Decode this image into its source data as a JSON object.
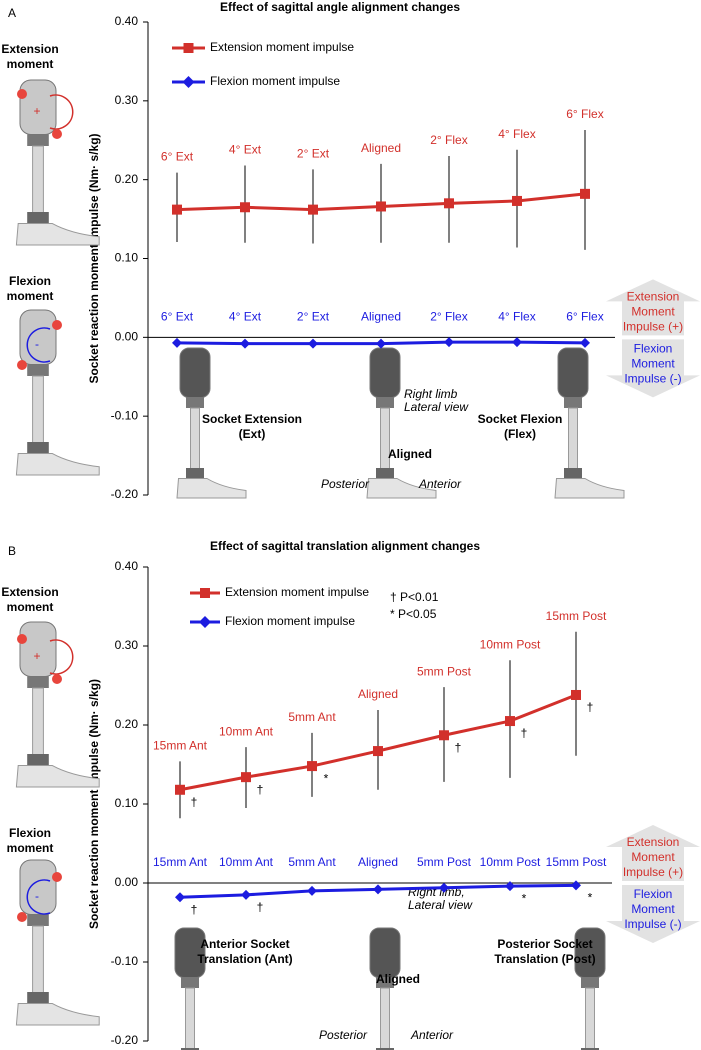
{
  "chart_data": [
    {
      "type": "line",
      "panel": "A",
      "title": "Effect of sagittal angle alignment changes",
      "y_label": "Socket reaction moment impulse (Nm· s/kg)",
      "categories": [
        "6° Ext",
        "4° Ext",
        "2° Ext",
        "Aligned",
        "2° Flex",
        "4° Flex",
        "6° Flex"
      ],
      "series": [
        {
          "name": "Extension moment impulse",
          "color": "#d2302b",
          "marker": "square",
          "values": [
            0.162,
            0.165,
            0.162,
            0.166,
            0.17,
            0.173,
            0.182
          ],
          "ci_low": [
            0.121,
            0.12,
            0.119,
            0.12,
            0.12,
            0.114,
            0.111
          ],
          "ci_high": [
            0.209,
            0.218,
            0.213,
            0.22,
            0.23,
            0.238,
            0.263
          ]
        },
        {
          "name": "Flexion moment impulse",
          "color": "#1c1ce0",
          "marker": "diamond",
          "values": [
            -0.007,
            -0.008,
            -0.008,
            -0.008,
            -0.006,
            -0.006,
            -0.007
          ]
        }
      ],
      "ylim": [
        -0.2,
        0.4
      ],
      "yticks": [
        {
          "value": 0.4,
          "label": "0.40"
        },
        {
          "value": 0.3,
          "label": "0.30"
        },
        {
          "value": 0.2,
          "label": "0.20"
        },
        {
          "value": 0.1,
          "label": "0.10"
        },
        {
          "value": 0,
          "label": "0.00"
        },
        {
          "value": -0.1,
          "label": "-0.10"
        },
        {
          "value": -0.2,
          "label": "-0.20"
        }
      ],
      "side_labels": [
        [
          "Extension",
          "moment"
        ],
        [
          "Flexion",
          "moment"
        ]
      ],
      "moment_signs": [
        "+",
        "-"
      ],
      "arrow_labels": [
        [
          "Extension",
          "Moment",
          "Impulse (+)"
        ],
        [
          "Flexion",
          "Moment",
          "Impulse (-)"
        ]
      ],
      "image_labels": [
        [
          "Socket Extension",
          "(Ext)"
        ],
        [
          "Right limb",
          "Lateral view"
        ],
        [
          "Aligned"
        ],
        [
          "Posterior"
        ],
        [
          "Anterior"
        ],
        [
          "Socket Flexion",
          "(Flex)"
        ]
      ]
    },
    {
      "type": "line",
      "panel": "B",
      "title": "Effect of sagittal translation alignment changes",
      "y_label": "Socket reaction moment impulse (Nm· s/kg)",
      "categories": [
        "15mm Ant",
        "10mm Ant",
        "5mm Ant",
        "Aligned",
        "5mm Post",
        "10mm Post",
        "15mm Post"
      ],
      "series": [
        {
          "name": "Extension moment impulse",
          "color": "#d2302b",
          "marker": "square",
          "values": [
            0.118,
            0.134,
            0.148,
            0.167,
            0.187,
            0.205,
            0.238
          ],
          "ci_low": [
            0.082,
            0.095,
            0.109,
            0.118,
            0.128,
            0.133,
            0.161
          ],
          "ci_high": [
            0.154,
            0.172,
            0.19,
            0.219,
            0.248,
            0.282,
            0.318
          ],
          "significance": [
            "†",
            "†",
            "*",
            null,
            "†",
            "†",
            "†"
          ]
        },
        {
          "name": "Flexion moment impulse",
          "color": "#1c1ce0",
          "marker": "diamond",
          "values": [
            -0.018,
            -0.015,
            -0.01,
            -0.008,
            -0.006,
            -0.004,
            -0.003
          ],
          "significance": [
            "†",
            "†",
            null,
            null,
            null,
            "*",
            "*"
          ]
        }
      ],
      "ylim": [
        -0.2,
        0.4
      ],
      "yticks": [
        {
          "value": 0.4,
          "label": "0.40"
        },
        {
          "value": 0.3,
          "label": "0.30"
        },
        {
          "value": 0.2,
          "label": "0.20"
        },
        {
          "value": 0.1,
          "label": "0.10"
        },
        {
          "value": 0,
          "label": "0.00"
        },
        {
          "value": -0.1,
          "label": "-0.10"
        },
        {
          "value": -0.2,
          "label": "-0.20"
        }
      ],
      "annotations": [
        "† P<0.01",
        "* P<0.05"
      ],
      "side_labels": [
        [
          "Extension",
          "moment"
        ],
        [
          "Flexion",
          "moment"
        ]
      ],
      "moment_signs": [
        "+",
        "-"
      ],
      "arrow_labels": [
        [
          "Extension",
          "Moment",
          "Impulse (+)"
        ],
        [
          "Flexion",
          "Moment",
          "Impulse (-)"
        ]
      ],
      "image_labels": [
        [
          "Anterior Socket",
          "Translation (Ant)"
        ],
        [
          "Right limb,",
          "Lateral view"
        ],
        [
          "Aligned"
        ],
        [
          "Posterior"
        ],
        [
          "Anterior"
        ],
        [
          "Posterior Socket",
          "Translation (Post)"
        ]
      ]
    }
  ]
}
